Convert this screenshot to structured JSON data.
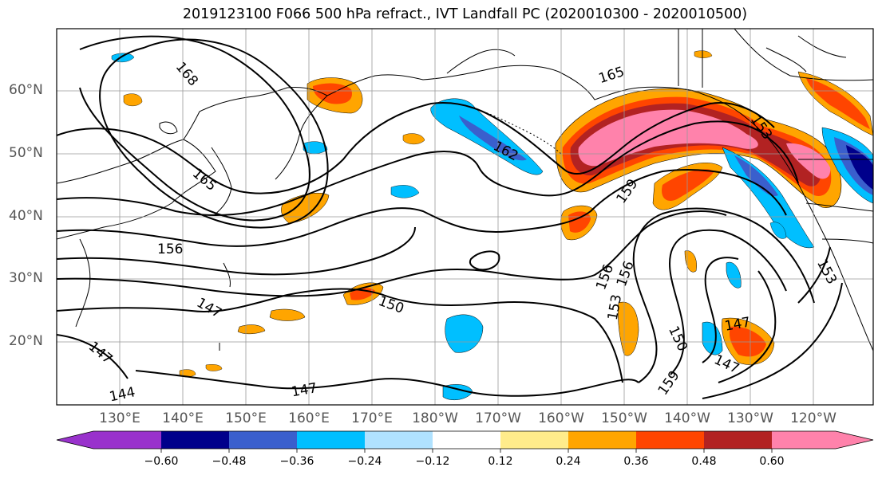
{
  "title": "2019123100 F066 500 hPa refract., IVT Landfall PC (2020010300 - 2020010500)",
  "map": {
    "lat_labels": [
      "60°N",
      "50°N",
      "40°N",
      "30°N",
      "20°N"
    ],
    "lon_labels": [
      "130°E",
      "140°E",
      "150°E",
      "160°E",
      "170°E",
      "180°W",
      "170°W",
      "160°W",
      "150°W",
      "140°W",
      "130°W",
      "120°W"
    ],
    "contour_labels": [
      "168",
      "165",
      "162",
      "159",
      "156",
      "153",
      "150",
      "147",
      "144",
      "165",
      "156",
      "156",
      "153",
      "150",
      "147",
      "147",
      "147",
      "147",
      "159",
      "153"
    ],
    "gridlines": true
  },
  "colorbar": {
    "tick_labels": [
      "−0.60",
      "−0.48",
      "−0.36",
      "−0.24",
      "−0.12",
      "0.12",
      "0.24",
      "0.36",
      "0.48",
      "0.60"
    ],
    "colors": [
      "#9932cc",
      "#00008b",
      "#3a5fcd",
      "#00bfff",
      "#b0e2ff",
      "#ffffff",
      "#ffec8b",
      "#ffa500",
      "#ff4500",
      "#b22222",
      "#ff82ab"
    ],
    "extend": "both"
  },
  "colors": {
    "label_gray": "#555555"
  }
}
